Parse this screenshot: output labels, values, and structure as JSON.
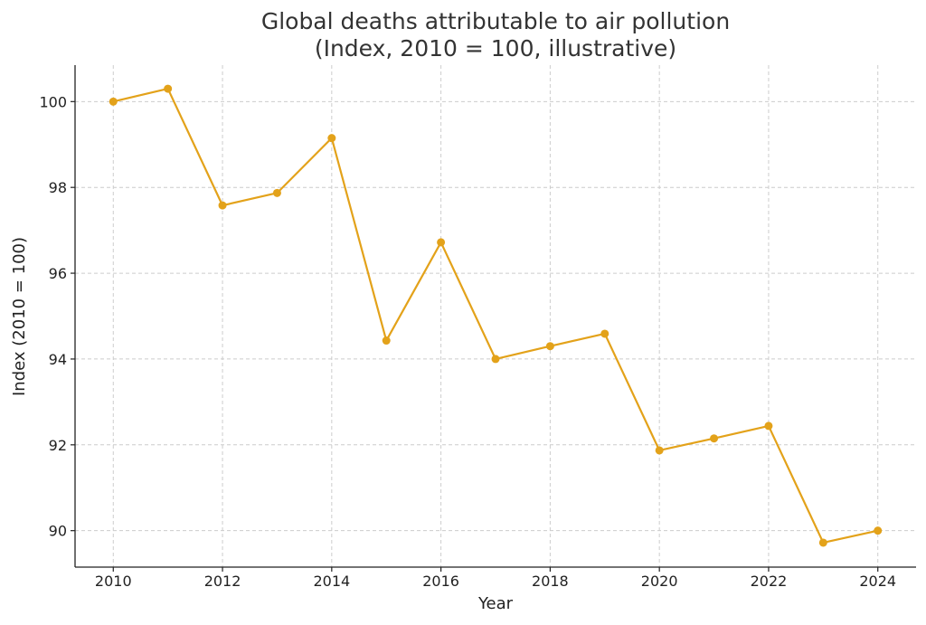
{
  "chart_data": {
    "type": "line",
    "title_line1": "Global deaths attributable to air pollution",
    "title_line2": "(Index, 2010 = 100, illustrative)",
    "xlabel": "Year",
    "ylabel": "Index (2010 = 100)",
    "x": [
      2010,
      2011,
      2012,
      2013,
      2014,
      2015,
      2016,
      2017,
      2018,
      2019,
      2020,
      2021,
      2022,
      2023,
      2024
    ],
    "series": [
      {
        "values": [
          100.0,
          100.3,
          97.58,
          97.87,
          99.15,
          94.43,
          96.72,
          94.0,
          94.3,
          94.59,
          91.87,
          92.15,
          92.44,
          89.72,
          90.0
        ]
      }
    ],
    "xticks": [
      2010,
      2012,
      2014,
      2016,
      2018,
      2020,
      2022,
      2024
    ],
    "yticks": [
      90,
      92,
      94,
      96,
      98,
      100
    ],
    "xlim": [
      2009.3,
      2024.7
    ],
    "ylim": [
      89.15,
      100.85
    ],
    "grid": true,
    "line_color": "#E3A21A"
  }
}
